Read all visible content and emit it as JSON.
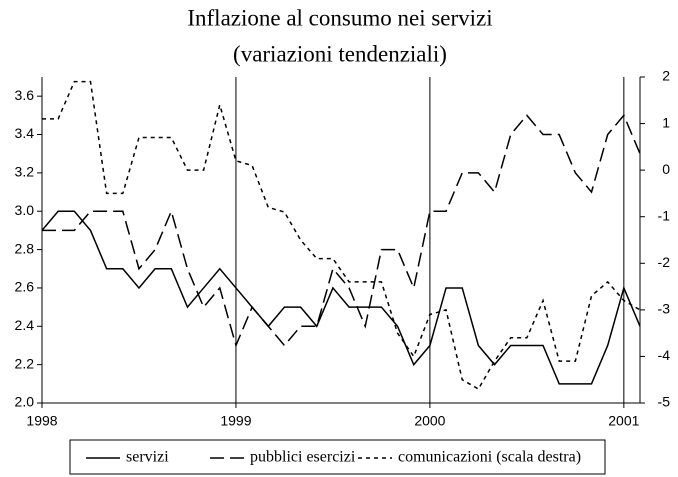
{
  "chart_data": {
    "type": "line",
    "title": "Inflazione al consumo nei servizi",
    "subtitle": "(variazioni tendenziali)",
    "x": [
      1998,
      1998.0833,
      1998.1667,
      1998.25,
      1998.3333,
      1998.4167,
      1998.5,
      1998.5833,
      1998.6667,
      1998.75,
      1998.8333,
      1998.9167,
      1999,
      1999.0833,
      1999.1667,
      1999.25,
      1999.3333,
      1999.4167,
      1999.5,
      1999.5833,
      1999.6667,
      1999.75,
      1999.8333,
      1999.9167,
      2000,
      2000.0833,
      2000.1667,
      2000.25,
      2000.3333,
      2000.4167,
      2000.5,
      2000.5833,
      2000.6667,
      2000.75,
      2000.8333,
      2000.9167,
      2001,
      2001.0833
    ],
    "xlim": [
      1998,
      2001.0833
    ],
    "xticks": [
      1998,
      1999,
      2000,
      2001
    ],
    "xgrid": true,
    "ylim": [
      2.0,
      3.7
    ],
    "yticks": [
      {
        "value": 2.0,
        "label": "2.0"
      },
      2.2,
      2.4,
      2.6,
      2.8,
      {
        "value": 3.0,
        "label": "3.0"
      },
      3.2,
      3.4,
      3.6
    ],
    "y2lim": [
      -5,
      2
    ],
    "y2ticks": [
      -5,
      -4,
      -3,
      -2,
      -1,
      0,
      1,
      2
    ],
    "series": [
      {
        "name": "servizi",
        "color": "#000000",
        "dash": "none",
        "values": [
          2.9,
          3.0,
          3.0,
          2.9,
          2.7,
          2.7,
          2.6,
          2.7,
          2.7,
          2.5,
          2.6,
          2.7,
          2.6,
          2.5,
          2.4,
          2.5,
          2.5,
          2.4,
          2.6,
          2.5,
          2.5,
          2.5,
          2.4,
          2.2,
          2.3,
          2.6,
          2.6,
          2.3,
          2.2,
          2.3,
          2.3,
          2.3,
          2.1,
          2.1,
          2.1,
          2.3,
          2.6,
          2.4
        ]
      },
      {
        "name": "pubblici esercizi",
        "color": "#000000",
        "dash": "14 6",
        "values": [
          2.9,
          2.9,
          2.9,
          3.0,
          3.0,
          3.0,
          2.7,
          2.8,
          3.0,
          2.7,
          2.5,
          2.6,
          2.3,
          2.5,
          2.4,
          2.3,
          2.4,
          2.4,
          2.7,
          2.6,
          2.4,
          2.8,
          2.8,
          2.6,
          3.0,
          3.0,
          3.2,
          3.2,
          3.1,
          3.4,
          3.5,
          3.4,
          3.4,
          3.2,
          3.1,
          3.4,
          3.5,
          3.3
        ]
      },
      {
        "name": "comunicazioni (scala destra)",
        "color": "#000000",
        "dash": "4 4",
        "axis": "y2",
        "values": [
          1.1,
          1.1,
          1.9,
          1.9,
          -0.5,
          -0.5,
          0.7,
          0.7,
          0.7,
          0.0,
          0.0,
          1.4,
          0.2,
          0.1,
          -0.8,
          -0.9,
          -1.5,
          -1.9,
          -1.9,
          -2.4,
          -2.4,
          -2.4,
          -3.5,
          -4.0,
          -3.1,
          -3.0,
          -4.5,
          -4.7,
          -4.1,
          -3.6,
          -3.6,
          -2.8,
          -4.1,
          -4.1,
          -2.7,
          -2.4,
          -2.8,
          -3.0
        ]
      }
    ]
  }
}
